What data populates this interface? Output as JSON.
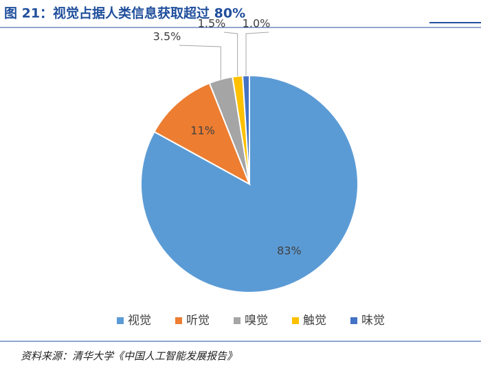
{
  "chart_data": {
    "type": "pie",
    "title": "图 21：视觉占据人类信息获取超过 80%",
    "categories": [
      "视觉",
      "听觉",
      "嗅觉",
      "触觉",
      "味觉"
    ],
    "values": [
      83,
      11,
      3.5,
      1.5,
      1.0
    ],
    "value_labels": [
      "83%",
      "11%",
      "3.5%",
      "1.5%",
      "1.0%"
    ],
    "colors": [
      "#5b9bd5",
      "#ed7d31",
      "#a5a5a5",
      "#ffc000",
      "#4472c4"
    ],
    "legend": "bottom",
    "source": "资料来源：清华大学《中国人工智能发展报告》"
  }
}
